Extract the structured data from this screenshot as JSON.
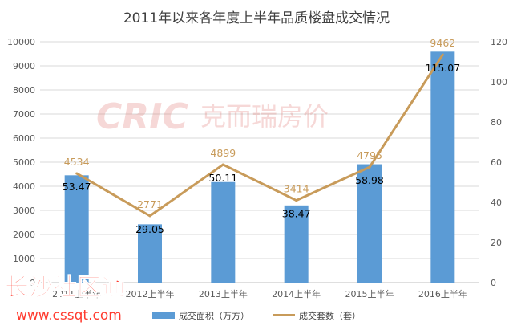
{
  "chart_data": {
    "type": "bar",
    "title": "2011年以来各年度上半年品质楼盘成交情况",
    "categories": [
      "2011上半年",
      "2012上半年",
      "2013上半年",
      "2014上半年",
      "2015上半年",
      "2016上半年"
    ],
    "series": [
      {
        "name": "成交面积（万方）",
        "type": "bar",
        "axis": "right",
        "values": [
          53.47,
          29.05,
          50.11,
          38.47,
          58.98,
          115.07
        ]
      },
      {
        "name": "成交套数（套）",
        "type": "line",
        "axis": "left",
        "values": [
          4534,
          2771,
          4899,
          3414,
          4795,
          9462
        ]
      }
    ],
    "y_left": {
      "lim": [
        0,
        10000
      ],
      "ticks": [
        0,
        1000,
        2000,
        3000,
        4000,
        5000,
        6000,
        7000,
        8000,
        9000,
        10000
      ]
    },
    "y_right": {
      "lim": [
        0,
        120
      ],
      "ticks": [
        0,
        20,
        40,
        60,
        80,
        100,
        120
      ]
    },
    "grid": true,
    "legend": "bottom",
    "colors": {
      "bar": "#5b9bd5",
      "line": "#c89b5a",
      "grid": "#d9d9d9"
    }
  },
  "watermarks": {
    "logo": "CRIC",
    "logo_cn": "克而瑞房价",
    "site_cn": "长沙社区通",
    "site_url": "www.cssqt.com"
  }
}
